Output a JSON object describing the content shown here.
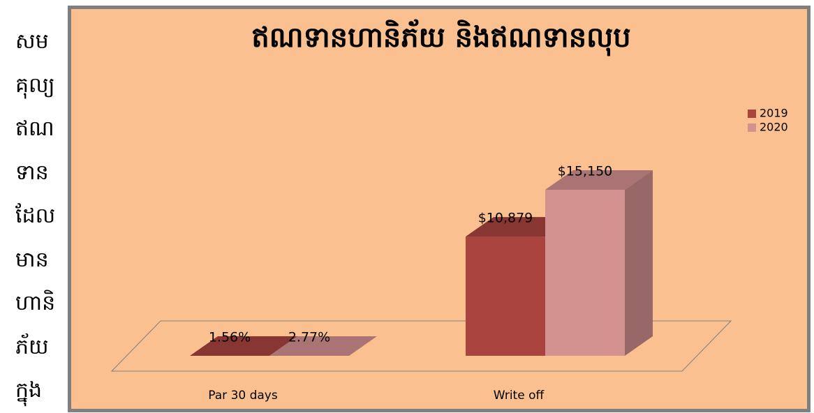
{
  "side_text": [
    "សម",
    "គុល្យ",
    "ឥណ",
    "ទាន",
    "ដែល",
    "មាន",
    "ហានិ",
    "ភ័យ",
    "ក្នុង"
  ],
  "chart_data": {
    "type": "bar3d",
    "title": "ឥណទានហានិភ័យ និងឥណទានលុប",
    "categories": [
      "Par 30 days",
      "Write off"
    ],
    "series": [
      {
        "name": "2019",
        "color": "#a9443f",
        "values": [
          1.56,
          10879
        ],
        "value_labels": [
          "1.56%",
          "$10,879"
        ]
      },
      {
        "name": "2020",
        "color": "#d39190",
        "values": [
          2.77,
          15150
        ],
        "value_labels": [
          "2.77%",
          "$15,150"
        ]
      }
    ],
    "legend": "right"
  }
}
